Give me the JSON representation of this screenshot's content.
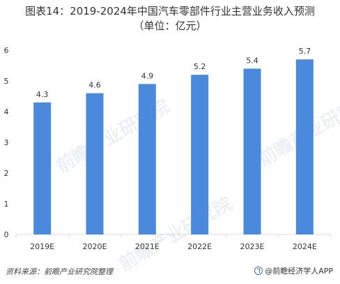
{
  "title": {
    "line1": "图表14：2019-2024年中国汽车零部件行业主营业务收入预测",
    "line2": "（单位：亿元）"
  },
  "watermark": "前瞻产业研究院",
  "source": "资料来源：前瞻产业研究院整理",
  "brand": "@前瞻经济学人APP",
  "colors": {
    "bar": "#4a89dc",
    "axis": "#d9d9d9"
  },
  "chart_data": {
    "type": "bar",
    "title": "图表14：2019-2024年中国汽车零部件行业主营业务收入预测（单位：亿元）",
    "categories": [
      "2019E",
      "2020E",
      "2021E",
      "2022E",
      "2023E",
      "2024E"
    ],
    "values": [
      4.3,
      4.6,
      4.9,
      5.2,
      5.4,
      5.7
    ],
    "data_labels": [
      "4.3",
      "4.6",
      "4.9",
      "5.2",
      "5.4",
      "5.7"
    ],
    "yticks": [
      0,
      1,
      2,
      3,
      4,
      5,
      6
    ],
    "ylim": [
      0,
      6
    ],
    "grid": false,
    "legend": "none"
  }
}
